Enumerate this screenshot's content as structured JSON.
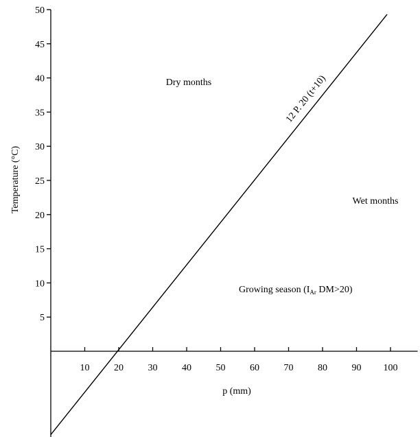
{
  "chart_data": {
    "type": "line",
    "title": "",
    "xlabel": "p (mm)",
    "ylabel": "Temperature (°C)",
    "xlim": [
      0,
      108
    ],
    "ylim": [
      -15,
      50
    ],
    "x_ticks": [
      10,
      20,
      30,
      40,
      50,
      60,
      70,
      80,
      90,
      100
    ],
    "y_ticks": [
      5,
      10,
      15,
      20,
      25,
      30,
      35,
      40,
      45,
      50
    ],
    "grid": false,
    "series": [
      {
        "name": "12 P. 20 (t+10)",
        "x": [
          0,
          99
        ],
        "y": [
          -12.2,
          49.3
        ]
      }
    ],
    "annotations": {
      "dry": "Dry months",
      "wet": "Wet months",
      "growing_prefix": "Growing season (I",
      "growing_sub": "Ar",
      "growing_suffix": " DM>20)"
    }
  }
}
